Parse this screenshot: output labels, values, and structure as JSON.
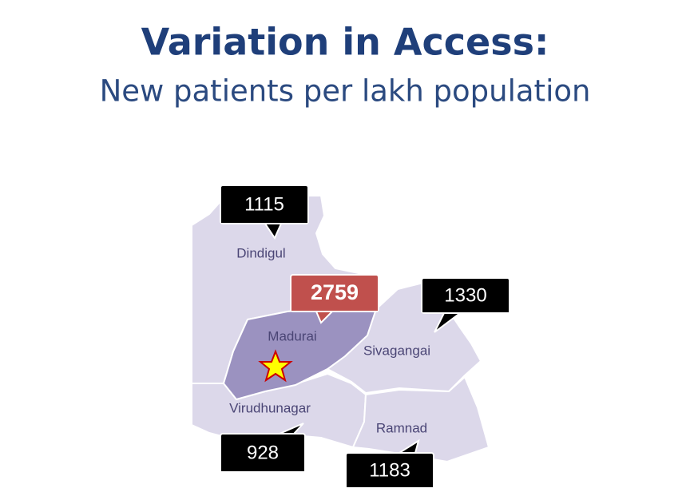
{
  "title": "Variation in Access:",
  "subtitle": "New patients per lakh population",
  "regions": [
    {
      "name": "Dindigul",
      "value": 1115
    },
    {
      "name": "Madurai",
      "value": 2759
    },
    {
      "name": "Sivagangai",
      "value": 1330
    },
    {
      "name": "Virudhunagar",
      "value": 928
    },
    {
      "name": "Ramnad",
      "value": 1183
    }
  ]
}
